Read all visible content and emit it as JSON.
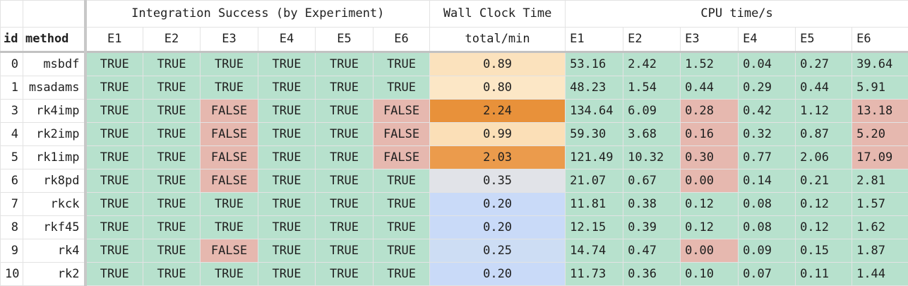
{
  "header": {
    "integration_group": "Integration Success (by Experiment)",
    "wall_group": "Wall Clock Time",
    "cpu_group": "CPU time/s",
    "id_label": "id",
    "method_label": "method",
    "integration_cols": [
      "E1",
      "E2",
      "E3",
      "E4",
      "E5",
      "E6"
    ],
    "wall_col": "total/min",
    "cpu_cols": [
      "E1",
      "E2",
      "E3",
      "E4",
      "E5",
      "E6"
    ]
  },
  "colors": {
    "true_bg": "#b7e1cd",
    "false_bg": "#e6b8af",
    "cpu_ok_bg": "#b7e1cd",
    "cpu_bad_bg": "#e6b8af",
    "wall_scale": {
      "low": "#c9daf8",
      "mid": "#e0e3ea",
      "light_orange": "#fce5c1",
      "mid_orange": "#f8d19e",
      "high": "#e69138"
    }
  },
  "rows": [
    {
      "id": "0",
      "method": "msbdf",
      "integration": [
        "TRUE",
        "TRUE",
        "TRUE",
        "TRUE",
        "TRUE",
        "TRUE"
      ],
      "wall": "0.89",
      "wall_bg": "#fbe2bd",
      "cpu": [
        "53.16",
        "2.42",
        "1.52",
        "0.04",
        "0.27",
        "39.64"
      ],
      "cpu_bad": [
        false,
        false,
        false,
        false,
        false,
        false
      ]
    },
    {
      "id": "1",
      "method": "msadams",
      "integration": [
        "TRUE",
        "TRUE",
        "TRUE",
        "TRUE",
        "TRUE",
        "TRUE"
      ],
      "wall": "0.80",
      "wall_bg": "#fce7c6",
      "cpu": [
        "48.23",
        "1.54",
        "0.44",
        "0.29",
        "0.44",
        "5.91"
      ],
      "cpu_bad": [
        false,
        false,
        false,
        false,
        false,
        false
      ]
    },
    {
      "id": "3",
      "method": "rk4imp",
      "integration": [
        "TRUE",
        "TRUE",
        "FALSE",
        "TRUE",
        "TRUE",
        "FALSE"
      ],
      "wall": "2.24",
      "wall_bg": "#e8913a",
      "cpu": [
        "134.64",
        "6.09",
        "0.28",
        "0.42",
        "1.12",
        "13.18"
      ],
      "cpu_bad": [
        false,
        false,
        true,
        false,
        false,
        true
      ]
    },
    {
      "id": "4",
      "method": "rk2imp",
      "integration": [
        "TRUE",
        "TRUE",
        "FALSE",
        "TRUE",
        "TRUE",
        "FALSE"
      ],
      "wall": "0.99",
      "wall_bg": "#fbdfb7",
      "cpu": [
        "59.30",
        "3.68",
        "0.16",
        "0.32",
        "0.87",
        "5.20"
      ],
      "cpu_bad": [
        false,
        false,
        true,
        false,
        false,
        true
      ]
    },
    {
      "id": "5",
      "method": "rk1imp",
      "integration": [
        "TRUE",
        "TRUE",
        "FALSE",
        "TRUE",
        "TRUE",
        "FALSE"
      ],
      "wall": "2.03",
      "wall_bg": "#eb9b4c",
      "cpu": [
        "121.49",
        "10.32",
        "0.30",
        "0.77",
        "2.06",
        "17.09"
      ],
      "cpu_bad": [
        false,
        false,
        true,
        false,
        false,
        true
      ]
    },
    {
      "id": "6",
      "method": "rk8pd",
      "integration": [
        "TRUE",
        "TRUE",
        "FALSE",
        "TRUE",
        "TRUE",
        "TRUE"
      ],
      "wall": "0.35",
      "wall_bg": "#e1e3e8",
      "cpu": [
        "21.07",
        "0.67",
        "0.00",
        "0.14",
        "0.21",
        "2.81"
      ],
      "cpu_bad": [
        false,
        false,
        true,
        false,
        false,
        false
      ]
    },
    {
      "id": "7",
      "method": "rkck",
      "integration": [
        "TRUE",
        "TRUE",
        "TRUE",
        "TRUE",
        "TRUE",
        "TRUE"
      ],
      "wall": "0.20",
      "wall_bg": "#c9daf8",
      "cpu": [
        "11.81",
        "0.38",
        "0.12",
        "0.08",
        "0.12",
        "1.57"
      ],
      "cpu_bad": [
        false,
        false,
        false,
        false,
        false,
        false
      ]
    },
    {
      "id": "8",
      "method": "rkf45",
      "integration": [
        "TRUE",
        "TRUE",
        "TRUE",
        "TRUE",
        "TRUE",
        "TRUE"
      ],
      "wall": "0.20",
      "wall_bg": "#c9daf8",
      "cpu": [
        "12.15",
        "0.39",
        "0.12",
        "0.08",
        "0.12",
        "1.62"
      ],
      "cpu_bad": [
        false,
        false,
        false,
        false,
        false,
        false
      ]
    },
    {
      "id": "9",
      "method": "rk4",
      "integration": [
        "TRUE",
        "TRUE",
        "FALSE",
        "TRUE",
        "TRUE",
        "TRUE"
      ],
      "wall": "0.25",
      "wall_bg": "#cdddf4",
      "cpu": [
        "14.74",
        "0.47",
        "0.00",
        "0.09",
        "0.15",
        "1.87"
      ],
      "cpu_bad": [
        false,
        false,
        true,
        false,
        false,
        false
      ]
    },
    {
      "id": "10",
      "method": "rk2",
      "integration": [
        "TRUE",
        "TRUE",
        "TRUE",
        "TRUE",
        "TRUE",
        "TRUE"
      ],
      "wall": "0.20",
      "wall_bg": "#c9daf8",
      "cpu": [
        "11.73",
        "0.36",
        "0.10",
        "0.07",
        "0.11",
        "1.44"
      ],
      "cpu_bad": [
        false,
        false,
        false,
        false,
        false,
        false
      ]
    }
  ]
}
